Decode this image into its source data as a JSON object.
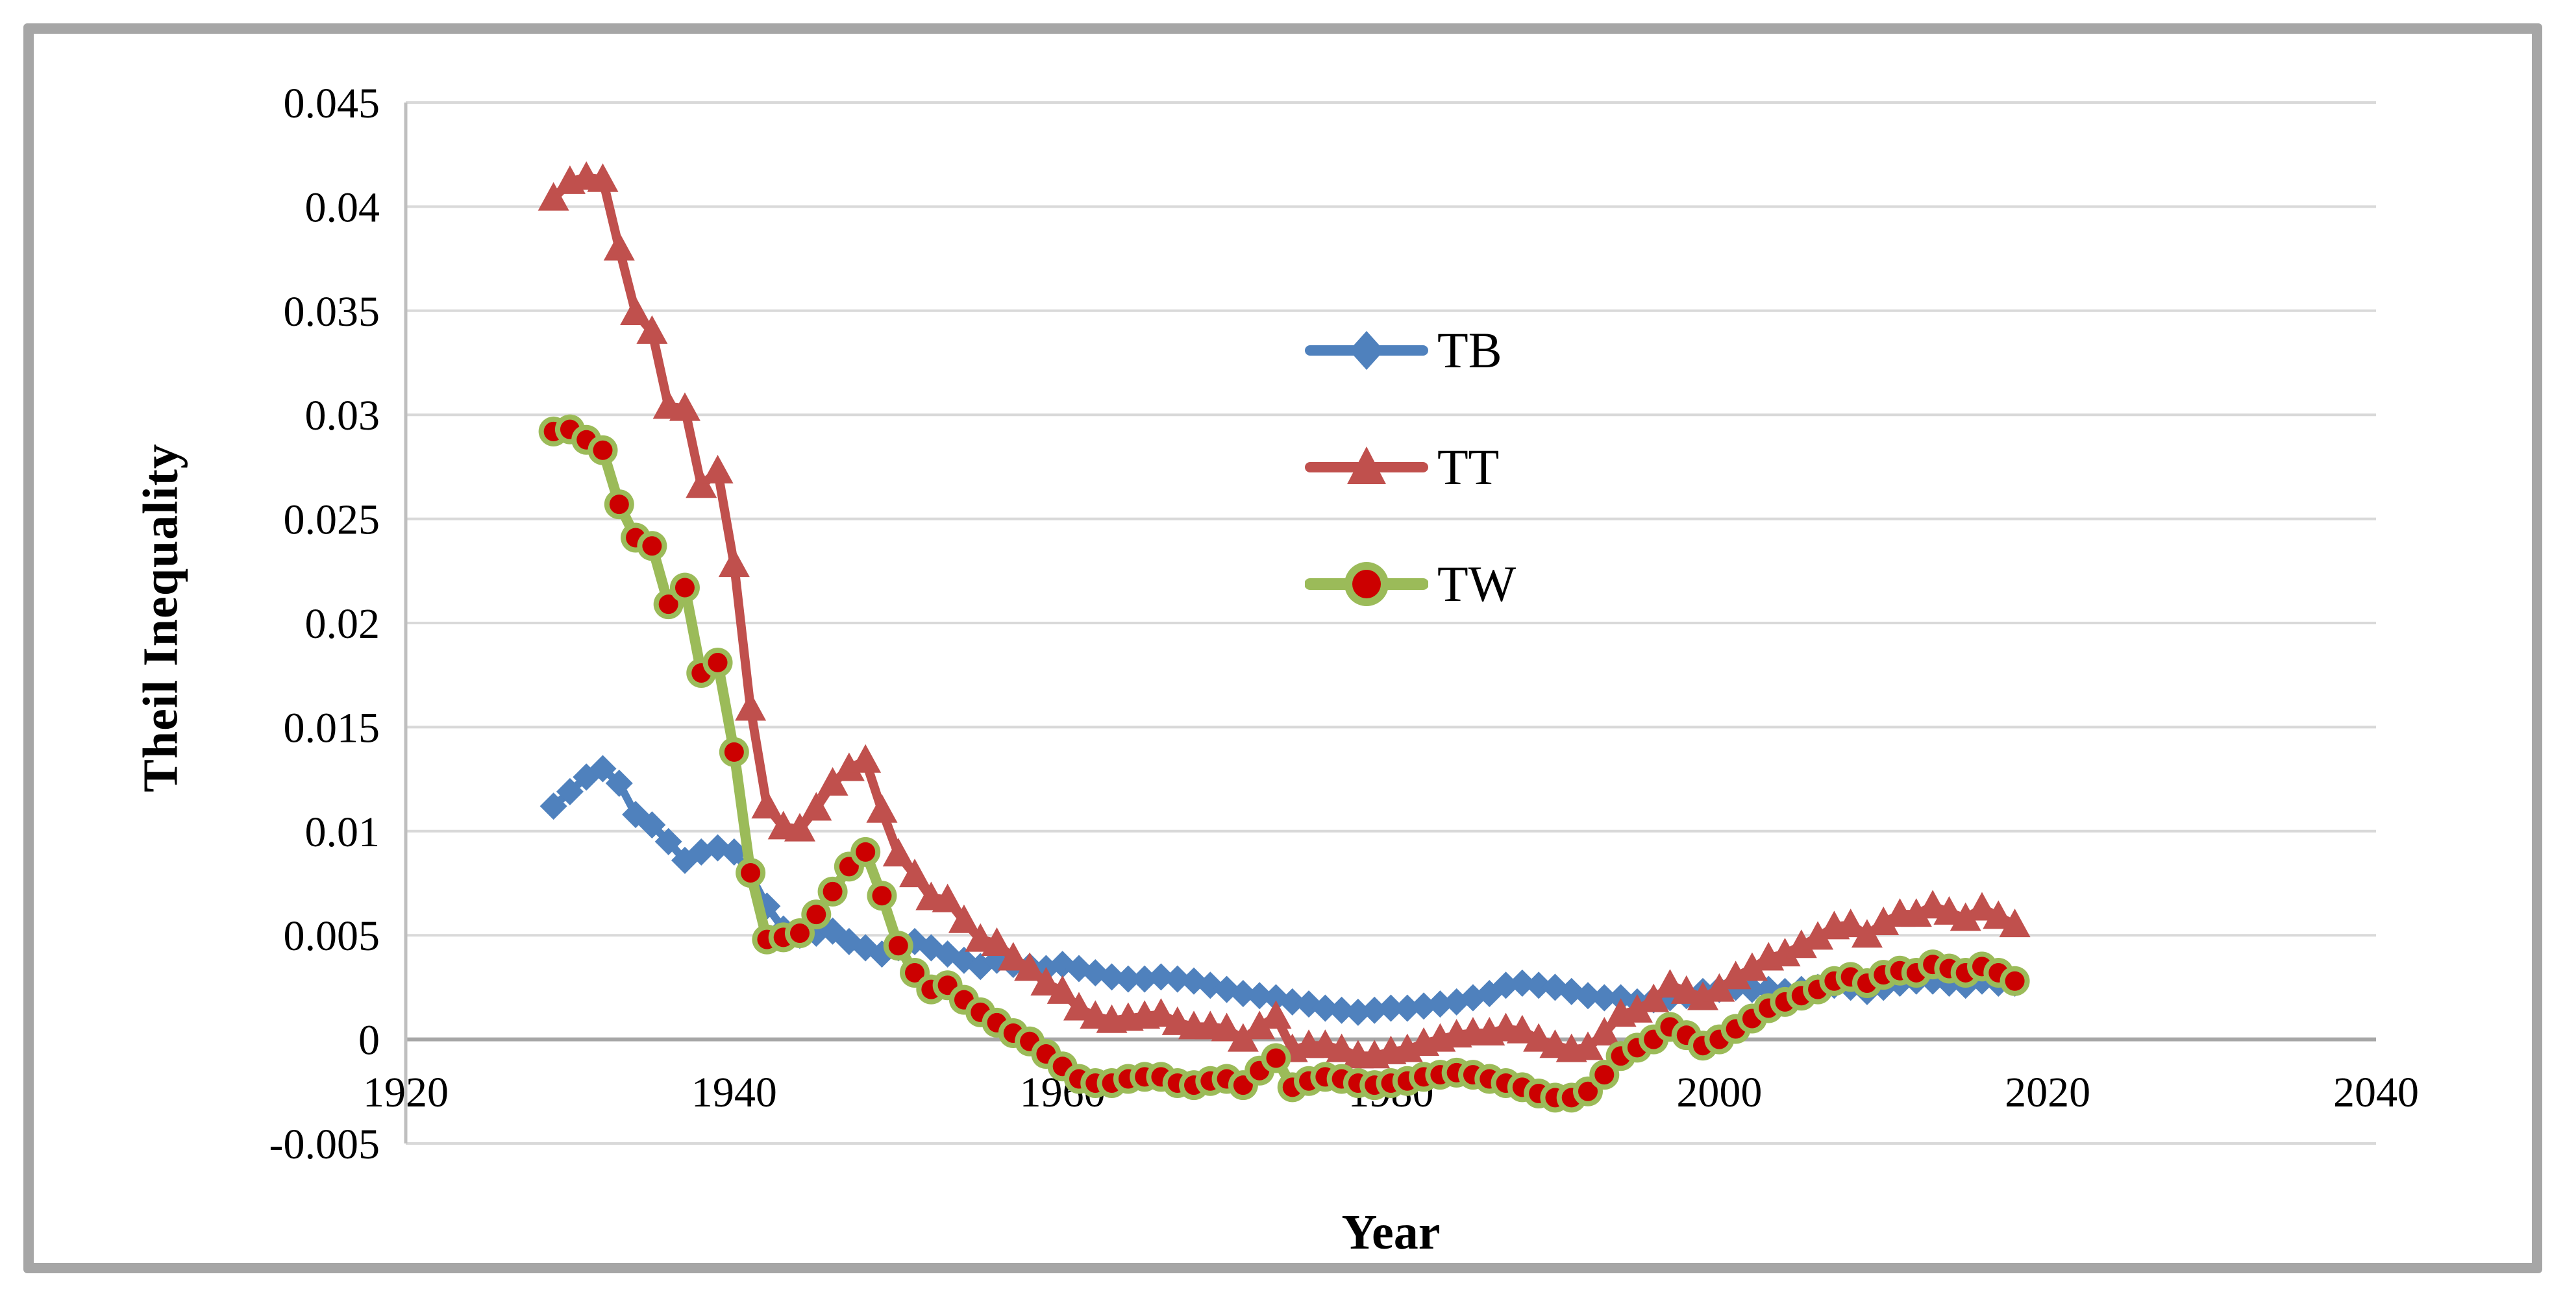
{
  "figure": {
    "background_color": "#ffffff",
    "frame_color": "#a6a6a6",
    "gridline_color": "#d9d9d9",
    "zero_axis_color": "#a6a6a6",
    "y_axis_line_color": "#bfbfbf"
  },
  "chart_data": {
    "type": "line",
    "title": "",
    "xlabel": "Year",
    "ylabel": "Theil Inequality",
    "xlim": [
      1920,
      2040
    ],
    "ylim": [
      -0.005,
      0.045
    ],
    "grid": "horizontal",
    "legend_position": "upper-center-right, no border",
    "x_ticks": [
      1920,
      1940,
      1960,
      1980,
      2000,
      2020,
      2040
    ],
    "x_tick_labels": [
      "1920",
      "1940",
      "1960",
      "1980",
      "2000",
      "2020",
      "2040"
    ],
    "y_ticks": [
      0.045,
      0.04,
      0.035,
      0.03,
      0.025,
      0.02,
      0.015,
      0.01,
      0.005,
      0,
      -0.005
    ],
    "y_tick_labels": [
      "0.045",
      "0.04",
      "0.035",
      "0.03",
      "0.025",
      "0.02",
      "0.015",
      "0.01",
      "0.005",
      "0",
      "-0.005"
    ],
    "years": [
      1929,
      1930,
      1931,
      1932,
      1933,
      1934,
      1935,
      1936,
      1937,
      1938,
      1939,
      1940,
      1941,
      1942,
      1943,
      1944,
      1945,
      1946,
      1947,
      1948,
      1949,
      1950,
      1951,
      1952,
      1953,
      1954,
      1955,
      1956,
      1957,
      1958,
      1959,
      1960,
      1961,
      1962,
      1963,
      1964,
      1965,
      1966,
      1967,
      1968,
      1969,
      1970,
      1971,
      1972,
      1973,
      1974,
      1975,
      1976,
      1977,
      1978,
      1979,
      1980,
      1981,
      1982,
      1983,
      1984,
      1985,
      1986,
      1987,
      1988,
      1989,
      1990,
      1991,
      1992,
      1993,
      1994,
      1995,
      1996,
      1997,
      1998,
      1999,
      2000,
      2001,
      2002,
      2003,
      2004,
      2005,
      2006,
      2007,
      2008,
      2009,
      2010,
      2011,
      2012,
      2013,
      2014,
      2015,
      2016,
      2017,
      2018
    ],
    "series": [
      {
        "name": "TB",
        "marker": "diamond",
        "color": "#4f81bd",
        "marker_fill": "#4f81bd",
        "values": [
          0.0112,
          0.0119,
          0.0126,
          0.013,
          0.0123,
          0.0108,
          0.0103,
          0.0095,
          0.0086,
          0.009,
          0.0092,
          0.009,
          0.0079,
          0.0064,
          0.0053,
          0.005,
          0.0051,
          0.0052,
          0.0047,
          0.0044,
          0.0041,
          0.0044,
          0.0047,
          0.0044,
          0.0041,
          0.0038,
          0.0035,
          0.0038,
          0.0036,
          0.0035,
          0.0034,
          0.0036,
          0.0034,
          0.0032,
          0.003,
          0.0029,
          0.0029,
          0.003,
          0.0029,
          0.0028,
          0.0026,
          0.0024,
          0.0022,
          0.0021,
          0.002,
          0.0018,
          0.0017,
          0.0015,
          0.0014,
          0.0013,
          0.0014,
          0.0015,
          0.0015,
          0.0016,
          0.0017,
          0.0018,
          0.002,
          0.0022,
          0.0026,
          0.0027,
          0.0026,
          0.0025,
          0.0023,
          0.0021,
          0.002,
          0.002,
          0.0018,
          0.0019,
          0.002,
          0.0021,
          0.0023,
          0.0024,
          0.0025,
          0.0024,
          0.0024,
          0.0023,
          0.0024,
          0.0025,
          0.0026,
          0.0025,
          0.0023,
          0.0025,
          0.0027,
          0.0028,
          0.0028,
          0.0027,
          0.0026,
          0.0028,
          0.0027,
          0.0027
        ]
      },
      {
        "name": "TT",
        "marker": "triangle",
        "color": "#c0504d",
        "marker_fill": "#c0504d",
        "values": [
          0.0404,
          0.0412,
          0.0414,
          0.0413,
          0.038,
          0.0349,
          0.034,
          0.0304,
          0.0303,
          0.0266,
          0.0273,
          0.0228,
          0.0159,
          0.0112,
          0.0102,
          0.0101,
          0.0111,
          0.0123,
          0.013,
          0.0134,
          0.011,
          0.0089,
          0.0079,
          0.0068,
          0.0067,
          0.0057,
          0.0048,
          0.0046,
          0.0039,
          0.0034,
          0.0027,
          0.0023,
          0.0015,
          0.0011,
          0.0009,
          0.001,
          0.0011,
          0.0012,
          0.0008,
          0.0006,
          0.0006,
          0.0005,
          0.0,
          0.0006,
          0.0011,
          -0.0005,
          -0.0003,
          -0.0003,
          -0.0005,
          -0.0008,
          -0.0008,
          -0.0006,
          -0.0005,
          -0.0002,
          0.0,
          0.0002,
          0.0003,
          0.0003,
          0.0005,
          0.0004,
          0.0,
          -0.0003,
          -0.0005,
          -0.0004,
          0.0003,
          0.0012,
          0.0014,
          0.0019,
          0.0026,
          0.0023,
          0.002,
          0.0024,
          0.003,
          0.0034,
          0.0039,
          0.0041,
          0.0045,
          0.0049,
          0.0054,
          0.0055,
          0.005,
          0.0056,
          0.006,
          0.006,
          0.0064,
          0.0061,
          0.0058,
          0.0063,
          0.0059,
          0.0055
        ]
      },
      {
        "name": "TW",
        "marker": "circle",
        "color": "#9bbb59",
        "marker_fill": "#cc0000",
        "values": [
          0.0292,
          0.0293,
          0.0288,
          0.0283,
          0.0257,
          0.0241,
          0.0237,
          0.0209,
          0.0217,
          0.0176,
          0.0181,
          0.0138,
          0.008,
          0.0048,
          0.0049,
          0.0051,
          0.006,
          0.0071,
          0.0083,
          0.009,
          0.0069,
          0.0045,
          0.0032,
          0.0024,
          0.0026,
          0.0019,
          0.0013,
          0.0008,
          0.0003,
          -0.0001,
          -0.0007,
          -0.0013,
          -0.0019,
          -0.0021,
          -0.0021,
          -0.0019,
          -0.0018,
          -0.0018,
          -0.0021,
          -0.0022,
          -0.002,
          -0.0019,
          -0.0022,
          -0.0015,
          -0.0009,
          -0.0023,
          -0.002,
          -0.0018,
          -0.0019,
          -0.0021,
          -0.0022,
          -0.0021,
          -0.002,
          -0.0018,
          -0.0017,
          -0.0016,
          -0.0017,
          -0.0019,
          -0.0021,
          -0.0023,
          -0.0026,
          -0.0028,
          -0.0028,
          -0.0025,
          -0.0017,
          -0.0008,
          -0.0004,
          0.0,
          0.0006,
          0.0002,
          -0.0003,
          0.0,
          0.0005,
          0.001,
          0.0015,
          0.0018,
          0.0021,
          0.0024,
          0.0028,
          0.003,
          0.0027,
          0.0031,
          0.0033,
          0.0032,
          0.0036,
          0.0034,
          0.0032,
          0.0035,
          0.0032,
          0.0028
        ]
      }
    ]
  }
}
